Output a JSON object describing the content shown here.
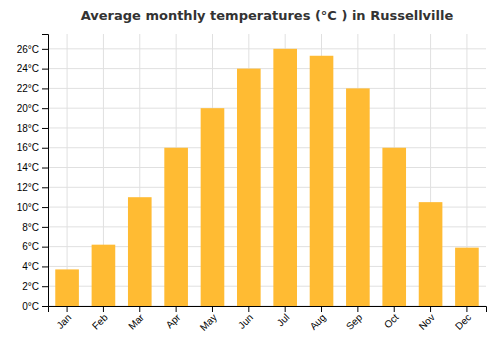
{
  "chart_data": {
    "type": "bar",
    "title": "Average monthly temperatures (°C ) in Russellville",
    "categories": [
      "Jan",
      "Feb",
      "Mar",
      "Apr",
      "May",
      "Jun",
      "Jul",
      "Aug",
      "Sep",
      "Oct",
      "Nov",
      "Dec"
    ],
    "values": [
      3.7,
      6.2,
      11.0,
      16.0,
      20.0,
      24.0,
      26.0,
      25.3,
      22.0,
      16.0,
      10.5,
      5.9
    ],
    "color": "#FFBB33",
    "ylim": [
      0,
      27.5
    ],
    "yticks": [
      {
        "value": 0,
        "label": "0°C"
      },
      {
        "value": 2,
        "label": "2°C"
      },
      {
        "value": 4,
        "label": "4°C"
      },
      {
        "value": 6,
        "label": "6°C"
      },
      {
        "value": 8,
        "label": "8°C"
      },
      {
        "value": 10,
        "label": "10°C"
      },
      {
        "value": 12,
        "label": "12°C"
      },
      {
        "value": 14,
        "label": "14°C"
      },
      {
        "value": 16,
        "label": "16°C"
      },
      {
        "value": 18,
        "label": "18°C"
      },
      {
        "value": 20,
        "label": "20°C"
      },
      {
        "value": 22,
        "label": "22°C"
      },
      {
        "value": 24,
        "label": "24°C"
      },
      {
        "value": 26,
        "label": "26°C"
      }
    ],
    "grid": true
  }
}
